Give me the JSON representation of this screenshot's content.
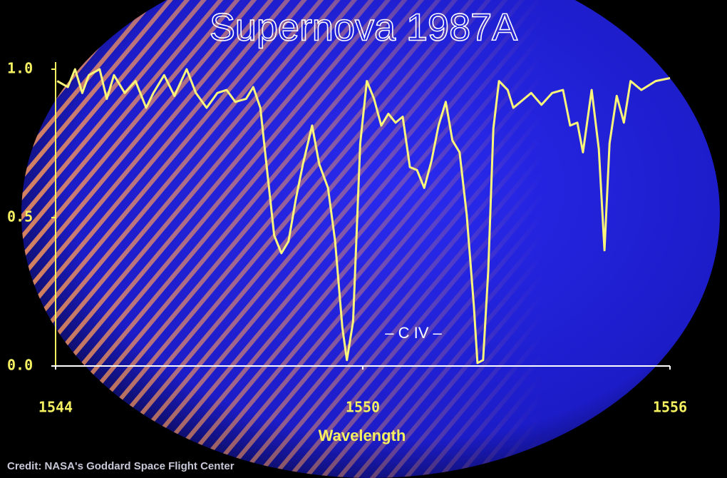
{
  "chart_data": {
    "type": "line",
    "title": "Supernova 1987A",
    "x_label": "Wavelength",
    "annotation": "– C IV –",
    "credit": "Credit: NASA's Goddard Space Flight Center",
    "color": "#fbf57a",
    "x": [
      1544.03,
      1544.24,
      1544.38,
      1544.52,
      1544.65,
      1544.86,
      1545.0,
      1545.14,
      1545.35,
      1545.56,
      1545.77,
      1545.91,
      1546.12,
      1546.32,
      1546.56,
      1546.74,
      1546.95,
      1547.16,
      1547.34,
      1547.51,
      1547.72,
      1547.86,
      1548.0,
      1548.13,
      1548.27,
      1548.41,
      1548.55,
      1548.69,
      1548.83,
      1549.01,
      1549.15,
      1549.32,
      1549.46,
      1549.6,
      1549.69,
      1549.81,
      1549.95,
      1550.08,
      1550.22,
      1550.36,
      1550.5,
      1550.64,
      1550.78,
      1550.92,
      1551.06,
      1551.2,
      1551.34,
      1551.48,
      1551.62,
      1551.75,
      1551.89,
      1552.03,
      1552.17,
      1552.24,
      1552.35,
      1552.45,
      1552.55,
      1552.66,
      1552.83,
      1552.94,
      1553.15,
      1553.29,
      1553.49,
      1553.7,
      1553.91,
      1554.05,
      1554.19,
      1554.3,
      1554.47,
      1554.61,
      1554.72,
      1554.82,
      1554.96,
      1555.1,
      1555.23,
      1555.44,
      1555.72,
      1556.0
    ],
    "values": [
      0.96,
      0.94,
      1.0,
      0.92,
      0.98,
      1.0,
      0.9,
      0.98,
      0.92,
      0.96,
      0.87,
      0.92,
      0.98,
      0.91,
      1.0,
      0.92,
      0.87,
      0.92,
      0.93,
      0.89,
      0.9,
      0.94,
      0.87,
      0.66,
      0.44,
      0.38,
      0.42,
      0.56,
      0.68,
      0.81,
      0.68,
      0.6,
      0.42,
      0.13,
      0.02,
      0.15,
      0.75,
      0.96,
      0.9,
      0.81,
      0.85,
      0.82,
      0.84,
      0.67,
      0.66,
      0.6,
      0.69,
      0.81,
      0.89,
      0.76,
      0.72,
      0.51,
      0.2,
      0.01,
      0.02,
      0.32,
      0.8,
      0.96,
      0.93,
      0.87,
      0.9,
      0.92,
      0.88,
      0.92,
      0.93,
      0.81,
      0.82,
      0.72,
      0.93,
      0.73,
      0.39,
      0.75,
      0.91,
      0.82,
      0.96,
      0.93,
      0.96,
      0.97
    ],
    "xlim": [
      1544,
      1556
    ],
    "xticks": [
      1544,
      1550,
      1556
    ],
    "ylim": [
      0,
      1
    ],
    "yticks": [
      {
        "value": 0,
        "label": "0.0"
      },
      {
        "value": 0.5,
        "label": "0.5"
      },
      {
        "value": 1,
        "label": "1.0"
      }
    ]
  }
}
